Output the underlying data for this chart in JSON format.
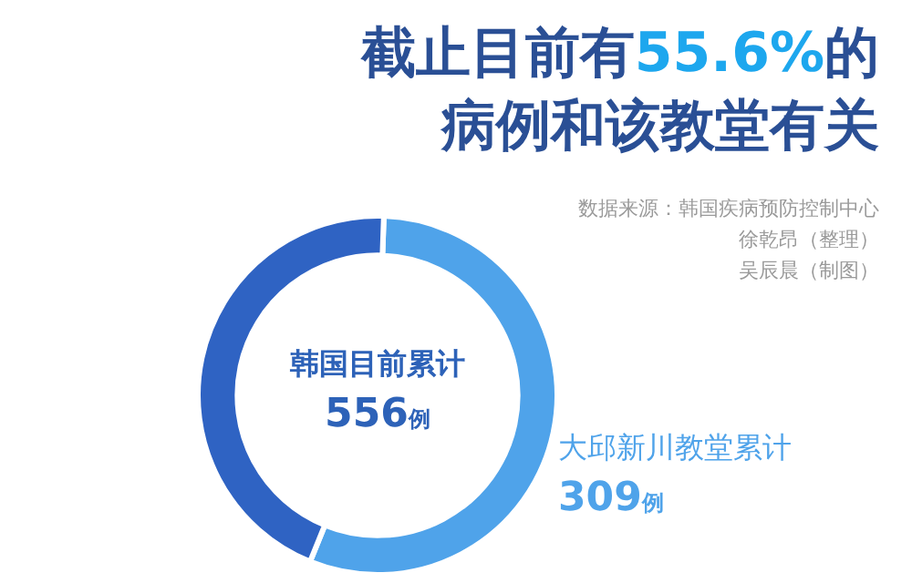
{
  "chart_data": {
    "type": "donut",
    "title": "截止目前有55.6%的病例和该教堂有关",
    "categories": [
      "大邱新川教堂累计",
      null
    ],
    "values": [
      309,
      247
    ],
    "colors": [
      "#4fa3ea",
      "#2f63c3"
    ],
    "value_labels": [
      "309例",
      null
    ],
    "legend": false,
    "annotations": [
      "数据来源：韩国疾病预防控制中心",
      "徐乾昂（整理）",
      "吴辰晨（制图）",
      "韩国目前累计",
      "556例"
    ]
  }
}
